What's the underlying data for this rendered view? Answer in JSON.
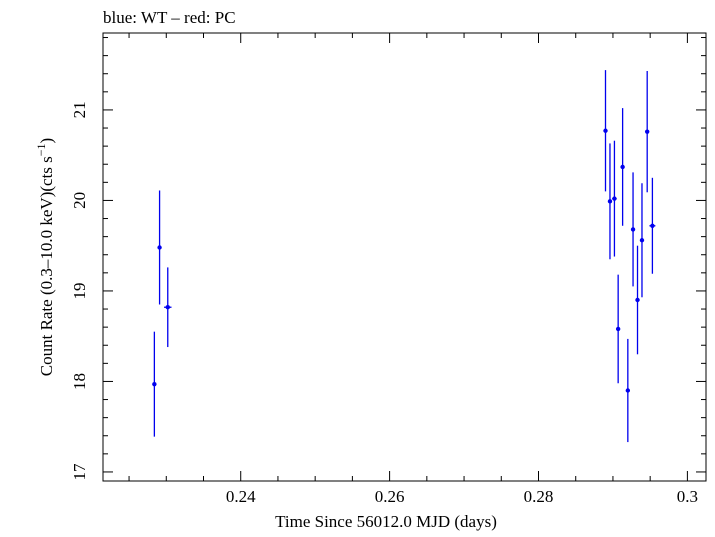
{
  "chart_data": {
    "type": "scatter",
    "title": "blue: WT – red: PC",
    "xlabel": "Time Since 56012.0 MJD (days)",
    "ylabel_main": "Count Rate (0.3–10.0 keV)(cts s",
    "ylabel_sup": "−1",
    "ylabel_close": ")",
    "xlim": [
      0.2215,
      0.3025
    ],
    "ylim": [
      16.9,
      21.85
    ],
    "x_ticks": [
      0.24,
      0.26,
      0.28,
      0.3
    ],
    "x_tick_labels": [
      "0.24",
      "0.26",
      "0.28",
      "0.3"
    ],
    "y_ticks": [
      17,
      18,
      19,
      20,
      21
    ],
    "y_tick_labels": [
      "17",
      "18",
      "19",
      "20",
      "21"
    ],
    "series": [
      {
        "name": "WT",
        "color": "#0000ee",
        "points": [
          {
            "x": 0.2284,
            "y": 17.97,
            "yerr": 0.58,
            "xerr": 0.0002
          },
          {
            "x": 0.2291,
            "y": 19.48,
            "yerr": 0.63,
            "xerr": 0.0002
          },
          {
            "x": 0.2302,
            "y": 18.82,
            "yerr": 0.44,
            "xerr": 0.0005
          },
          {
            "x": 0.289,
            "y": 20.77,
            "yerr": 0.67,
            "xerr": 0.0002
          },
          {
            "x": 0.2896,
            "y": 19.99,
            "yerr": 0.64,
            "xerr": 0.0002
          },
          {
            "x": 0.2902,
            "y": 20.02,
            "yerr": 0.64,
            "xerr": 0.0003
          },
          {
            "x": 0.2907,
            "y": 18.58,
            "yerr": 0.6,
            "xerr": 0.0002
          },
          {
            "x": 0.2913,
            "y": 20.37,
            "yerr": 0.65,
            "xerr": 0.0002
          },
          {
            "x": 0.292,
            "y": 17.9,
            "yerr": 0.57,
            "xerr": 0.0002
          },
          {
            "x": 0.2927,
            "y": 19.68,
            "yerr": 0.63,
            "xerr": 0.0002
          },
          {
            "x": 0.2933,
            "y": 18.9,
            "yerr": 0.6,
            "xerr": 0.0002
          },
          {
            "x": 0.2939,
            "y": 19.56,
            "yerr": 0.63,
            "xerr": 0.0002
          },
          {
            "x": 0.2946,
            "y": 20.76,
            "yerr": 0.67,
            "xerr": 0.0002
          },
          {
            "x": 0.2953,
            "y": 19.72,
            "yerr": 0.53,
            "xerr": 0.0004
          }
        ]
      }
    ]
  }
}
